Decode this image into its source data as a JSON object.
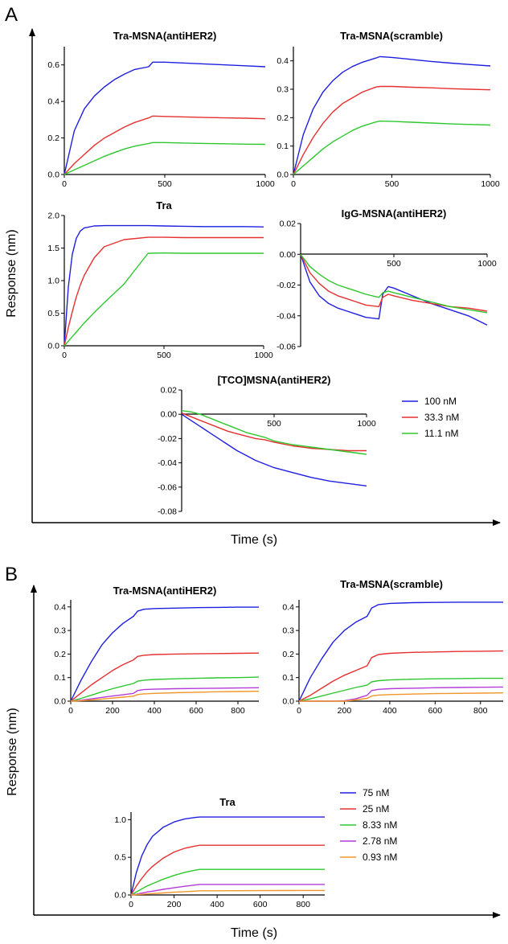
{
  "panels": [
    {
      "label": "A",
      "xlabel": "Time (s)",
      "ylabel": "Response (nm)",
      "legend": [
        {
          "label": "100 nM",
          "color": "#1f1fe0"
        },
        {
          "label": "33.3 nM",
          "color": "#e63030"
        },
        {
          "label": "11.1 nM",
          "color": "#2ec82e"
        }
      ]
    },
    {
      "label": "B",
      "xlabel": "Time (s)",
      "ylabel": "Response (nm)",
      "legend": [
        {
          "label": "75 nM",
          "color": "#1f1fe0"
        },
        {
          "label": "25 nM",
          "color": "#e63030"
        },
        {
          "label": "8.33 nM",
          "color": "#2ec82e"
        },
        {
          "label": "2.78 nM",
          "color": "#b53ad9"
        },
        {
          "label": "0.93 nM",
          "color": "#f2962a"
        }
      ]
    }
  ],
  "chart_data": [
    {
      "id": "A1",
      "panel": "A",
      "type": "line",
      "title": "Tra-MSNA(antiHER2)",
      "xlim": [
        0,
        1000
      ],
      "ylim": [
        0,
        0.7
      ],
      "xticks": [
        0,
        500,
        1000
      ],
      "xtick_labels": [
        "0",
        "500",
        "1000"
      ],
      "yticks": [
        0,
        0.2,
        0.4,
        0.6
      ],
      "ytick_labels": [
        "0.0",
        "0.2",
        "0.4",
        "0.6"
      ],
      "x": [
        0,
        50,
        100,
        150,
        200,
        250,
        300,
        350,
        420,
        440,
        500,
        600,
        700,
        800,
        900,
        1000
      ],
      "series": [
        {
          "name": "100 nM",
          "color": "#1f1fe0",
          "values": [
            0,
            0.24,
            0.36,
            0.43,
            0.48,
            0.52,
            0.55,
            0.575,
            0.59,
            0.615,
            0.615,
            0.61,
            0.605,
            0.6,
            0.595,
            0.59
          ]
        },
        {
          "name": "33.3 nM",
          "color": "#e63030",
          "values": [
            0,
            0.06,
            0.11,
            0.16,
            0.2,
            0.23,
            0.26,
            0.285,
            0.31,
            0.32,
            0.318,
            0.315,
            0.312,
            0.31,
            0.308,
            0.305
          ]
        },
        {
          "name": "11.1 nM",
          "color": "#2ec82e",
          "values": [
            0,
            0.025,
            0.05,
            0.075,
            0.1,
            0.12,
            0.14,
            0.155,
            0.17,
            0.175,
            0.175,
            0.172,
            0.17,
            0.168,
            0.166,
            0.165
          ]
        }
      ]
    },
    {
      "id": "A2",
      "panel": "A",
      "type": "line",
      "title": "Tra-MSNA(scramble)",
      "xlim": [
        0,
        1000
      ],
      "ylim": [
        0,
        0.45
      ],
      "xticks": [
        0,
        500,
        1000
      ],
      "xtick_labels": [
        "0",
        "500",
        "1000"
      ],
      "yticks": [
        0,
        0.1,
        0.2,
        0.3,
        0.4
      ],
      "ytick_labels": [
        "0.0",
        "0.1",
        "0.2",
        "0.3",
        "0.4"
      ],
      "x": [
        0,
        50,
        100,
        150,
        200,
        250,
        300,
        350,
        420,
        440,
        500,
        600,
        700,
        800,
        900,
        1000
      ],
      "series": [
        {
          "name": "100 nM",
          "color": "#1f1fe0",
          "values": [
            0,
            0.14,
            0.23,
            0.29,
            0.33,
            0.36,
            0.38,
            0.395,
            0.41,
            0.415,
            0.412,
            0.405,
            0.398,
            0.392,
            0.387,
            0.382
          ]
        },
        {
          "name": "33.3 nM",
          "color": "#e63030",
          "values": [
            0,
            0.07,
            0.13,
            0.18,
            0.22,
            0.25,
            0.27,
            0.29,
            0.308,
            0.31,
            0.31,
            0.307,
            0.305,
            0.302,
            0.3,
            0.298
          ]
        },
        {
          "name": "11.1 nM",
          "color": "#2ec82e",
          "values": [
            0,
            0.03,
            0.06,
            0.09,
            0.115,
            0.135,
            0.155,
            0.17,
            0.185,
            0.188,
            0.187,
            0.184,
            0.181,
            0.178,
            0.176,
            0.174
          ]
        }
      ]
    },
    {
      "id": "A3",
      "panel": "A",
      "type": "line",
      "title": "Tra",
      "xlim": [
        0,
        1000
      ],
      "ylim": [
        0,
        2.0
      ],
      "xticks": [
        0,
        500,
        1000
      ],
      "xtick_labels": [
        "0",
        "500",
        "1000"
      ],
      "yticks": [
        0,
        0.5,
        1.0,
        1.5,
        2.0
      ],
      "ytick_labels": [
        "0.0",
        "0.5",
        "1.0",
        "1.5",
        "2.0"
      ],
      "x": [
        0,
        20,
        40,
        60,
        80,
        100,
        150,
        200,
        300,
        420,
        500,
        600,
        700,
        800,
        900,
        1000
      ],
      "series": [
        {
          "name": "100 nM",
          "color": "#1f1fe0",
          "values": [
            0,
            0.9,
            1.4,
            1.65,
            1.76,
            1.81,
            1.84,
            1.845,
            1.845,
            1.845,
            1.84,
            1.835,
            1.83,
            1.83,
            1.83,
            1.825
          ]
        },
        {
          "name": "33.3 nM",
          "color": "#e63030",
          "values": [
            0,
            0.28,
            0.52,
            0.75,
            0.93,
            1.08,
            1.35,
            1.52,
            1.63,
            1.665,
            1.665,
            1.66,
            1.66,
            1.66,
            1.66,
            1.66
          ]
        },
        {
          "name": "11.1 nM",
          "color": "#2ec82e",
          "values": [
            0,
            0.07,
            0.14,
            0.21,
            0.28,
            0.35,
            0.51,
            0.66,
            0.95,
            1.42,
            1.425,
            1.42,
            1.42,
            1.42,
            1.42,
            1.42
          ]
        }
      ]
    },
    {
      "id": "A4",
      "panel": "A",
      "type": "line",
      "title": "IgG-MSNA(antiHER2)",
      "xlim": [
        0,
        1000
      ],
      "ylim": [
        -0.06,
        0.02
      ],
      "xticks": [
        500,
        1000
      ],
      "xtick_labels": [
        "500",
        "1000"
      ],
      "yticks": [
        -0.06,
        -0.04,
        -0.02,
        0,
        0.02
      ],
      "ytick_labels": [
        "-0.06",
        "-0.04",
        "-0.02",
        "0.00",
        "0.02"
      ],
      "x": [
        0,
        50,
        100,
        150,
        200,
        250,
        300,
        350,
        420,
        440,
        470,
        500,
        600,
        700,
        800,
        900,
        1000
      ],
      "series": [
        {
          "name": "100 nM",
          "color": "#1f1fe0",
          "values": [
            0,
            -0.018,
            -0.027,
            -0.032,
            -0.035,
            -0.037,
            -0.039,
            -0.041,
            -0.042,
            -0.026,
            -0.021,
            -0.022,
            -0.027,
            -0.032,
            -0.036,
            -0.04,
            -0.046
          ]
        },
        {
          "name": "33.3 nM",
          "color": "#e63030",
          "values": [
            0,
            -0.012,
            -0.019,
            -0.024,
            -0.027,
            -0.029,
            -0.031,
            -0.033,
            -0.034,
            -0.028,
            -0.026,
            -0.027,
            -0.03,
            -0.032,
            -0.034,
            -0.035,
            -0.037
          ]
        },
        {
          "name": "11.1 nM",
          "color": "#2ec82e",
          "values": [
            0,
            -0.008,
            -0.013,
            -0.017,
            -0.02,
            -0.022,
            -0.024,
            -0.026,
            -0.028,
            -0.025,
            -0.024,
            -0.025,
            -0.028,
            -0.031,
            -0.034,
            -0.036,
            -0.038
          ]
        }
      ]
    },
    {
      "id": "A5",
      "panel": "A",
      "type": "line",
      "title": "[TCO]MSNA(antiHER2)",
      "xlim": [
        0,
        1000
      ],
      "ylim": [
        -0.08,
        0.02
      ],
      "xticks": [
        500,
        1000
      ],
      "xtick_labels": [
        "500",
        "1000"
      ],
      "yticks": [
        -0.08,
        -0.06,
        -0.04,
        -0.02,
        0,
        0.02
      ],
      "ytick_labels": [
        "-0.08",
        "-0.06",
        "-0.04",
        "-0.02",
        "0.00",
        "0.02"
      ],
      "x": [
        0,
        50,
        100,
        150,
        200,
        250,
        300,
        350,
        400,
        450,
        500,
        600,
        700,
        800,
        900,
        1000
      ],
      "series": [
        {
          "name": "100 nM",
          "color": "#1f1fe0",
          "values": [
            0,
            -0.005,
            -0.01,
            -0.015,
            -0.02,
            -0.025,
            -0.03,
            -0.034,
            -0.038,
            -0.041,
            -0.044,
            -0.048,
            -0.052,
            -0.055,
            -0.057,
            -0.059
          ]
        },
        {
          "name": "33.3 nM",
          "color": "#e63030",
          "values": [
            0.001,
            -0.002,
            -0.005,
            -0.008,
            -0.011,
            -0.014,
            -0.016,
            -0.018,
            -0.02,
            -0.021,
            -0.023,
            -0.026,
            -0.028,
            -0.029,
            -0.03,
            -0.03
          ]
        },
        {
          "name": "11.1 nM",
          "color": "#2ec82e",
          "values": [
            0.003,
            0.002,
            0,
            -0.003,
            -0.006,
            -0.009,
            -0.012,
            -0.015,
            -0.017,
            -0.019,
            -0.022,
            -0.025,
            -0.027,
            -0.029,
            -0.031,
            -0.033
          ]
        }
      ]
    },
    {
      "id": "B1",
      "panel": "B",
      "type": "line",
      "title": "Tra-MSNA(antiHER2)",
      "xlim": [
        0,
        900
      ],
      "ylim": [
        0,
        0.43
      ],
      "xticks": [
        0,
        200,
        400,
        600,
        800
      ],
      "xtick_labels": [
        "0",
        "200",
        "400",
        "600",
        "800"
      ],
      "yticks": [
        0,
        0.1,
        0.2,
        0.3,
        0.4
      ],
      "ytick_labels": [
        "0.0",
        "0.1",
        "0.2",
        "0.3",
        "0.4"
      ],
      "x": [
        0,
        50,
        100,
        150,
        200,
        250,
        300,
        320,
        350,
        400,
        500,
        600,
        700,
        800,
        900
      ],
      "series": [
        {
          "name": "75 nM",
          "color": "#1f1fe0",
          "values": [
            0,
            0.09,
            0.17,
            0.24,
            0.29,
            0.33,
            0.36,
            0.382,
            0.39,
            0.393,
            0.395,
            0.397,
            0.398,
            0.399,
            0.399
          ]
        },
        {
          "name": "25 nM",
          "color": "#e63030",
          "values": [
            0,
            0.035,
            0.07,
            0.1,
            0.13,
            0.155,
            0.175,
            0.19,
            0.195,
            0.198,
            0.2,
            0.201,
            0.202,
            0.203,
            0.204
          ]
        },
        {
          "name": "8.33 nM",
          "color": "#2ec82e",
          "values": [
            0,
            0.012,
            0.026,
            0.04,
            0.053,
            0.064,
            0.075,
            0.085,
            0.089,
            0.092,
            0.095,
            0.097,
            0.099,
            0.1,
            0.102
          ]
        },
        {
          "name": "2.78 nM",
          "color": "#b53ad9",
          "values": [
            0,
            0.004,
            0.01,
            0.016,
            0.022,
            0.027,
            0.033,
            0.045,
            0.049,
            0.051,
            0.053,
            0.054,
            0.055,
            0.056,
            0.057
          ]
        },
        {
          "name": "0.93 nM",
          "color": "#f2962a",
          "values": [
            0,
            0.002,
            0.005,
            0.009,
            0.013,
            0.017,
            0.021,
            0.028,
            0.031,
            0.033,
            0.036,
            0.038,
            0.04,
            0.041,
            0.042
          ]
        }
      ]
    },
    {
      "id": "B2",
      "panel": "B",
      "type": "line",
      "title": "Tra-MSNA(scramble)",
      "xlim": [
        0,
        900
      ],
      "ylim": [
        0,
        0.43
      ],
      "xticks": [
        0,
        200,
        400,
        600,
        800
      ],
      "xtick_labels": [
        "0",
        "200",
        "400",
        "600",
        "800"
      ],
      "yticks": [
        0,
        0.1,
        0.2,
        0.3,
        0.4
      ],
      "ytick_labels": [
        "0.0",
        "0.1",
        "0.2",
        "0.3",
        "0.4"
      ],
      "x": [
        0,
        50,
        100,
        150,
        200,
        250,
        300,
        320,
        350,
        400,
        500,
        600,
        700,
        800,
        900
      ],
      "series": [
        {
          "name": "75 nM",
          "color": "#1f1fe0",
          "values": [
            0,
            0.1,
            0.18,
            0.25,
            0.3,
            0.335,
            0.36,
            0.395,
            0.41,
            0.415,
            0.418,
            0.419,
            0.42,
            0.42,
            0.42
          ]
        },
        {
          "name": "25 nM",
          "color": "#e63030",
          "values": [
            0,
            0.025,
            0.055,
            0.085,
            0.11,
            0.13,
            0.15,
            0.185,
            0.198,
            0.203,
            0.207,
            0.209,
            0.211,
            0.212,
            0.213
          ]
        },
        {
          "name": "8.33 nM",
          "color": "#2ec82e",
          "values": [
            0,
            0.01,
            0.022,
            0.034,
            0.046,
            0.058,
            0.068,
            0.082,
            0.087,
            0.09,
            0.093,
            0.095,
            0.096,
            0.097,
            0.097
          ]
        },
        {
          "name": "2.78 nM",
          "color": "#b53ad9",
          "values": [
            0,
            0,
            0,
            0,
            0.002,
            0.01,
            0.025,
            0.045,
            0.05,
            0.053,
            0.055,
            0.057,
            0.058,
            0.059,
            0.06
          ]
        },
        {
          "name": "0.93 nM",
          "color": "#f2962a",
          "values": [
            0,
            0,
            0,
            0,
            0,
            0.005,
            0.012,
            0.022,
            0.026,
            0.028,
            0.03,
            0.032,
            0.033,
            0.034,
            0.035
          ]
        }
      ]
    },
    {
      "id": "B3",
      "panel": "B",
      "type": "line",
      "title": "Tra",
      "xlim": [
        0,
        900
      ],
      "ylim": [
        0,
        1.1
      ],
      "xticks": [
        0,
        200,
        400,
        600,
        800
      ],
      "xtick_labels": [
        "0",
        "200",
        "400",
        "600",
        "800"
      ],
      "yticks": [
        0,
        0.5,
        1.0
      ],
      "ytick_labels": [
        "0.0",
        "0.5",
        "1.0"
      ],
      "x": [
        0,
        25,
        50,
        75,
        100,
        150,
        200,
        250,
        300,
        320,
        400,
        500,
        600,
        700,
        800,
        900
      ],
      "series": [
        {
          "name": "75 nM",
          "color": "#1f1fe0",
          "values": [
            0,
            0.3,
            0.52,
            0.67,
            0.78,
            0.9,
            0.97,
            1.01,
            1.03,
            1.035,
            1.035,
            1.035,
            1.035,
            1.035,
            1.035,
            1.035
          ]
        },
        {
          "name": "25 nM",
          "color": "#e63030",
          "values": [
            0,
            0.12,
            0.22,
            0.31,
            0.38,
            0.49,
            0.57,
            0.62,
            0.65,
            0.66,
            0.66,
            0.66,
            0.66,
            0.66,
            0.66,
            0.66
          ]
        },
        {
          "name": "8.33 nM",
          "color": "#2ec82e",
          "values": [
            0,
            0.04,
            0.08,
            0.12,
            0.15,
            0.21,
            0.26,
            0.3,
            0.33,
            0.34,
            0.34,
            0.34,
            0.34,
            0.34,
            0.34,
            0.34
          ]
        },
        {
          "name": "2.78 nM",
          "color": "#b53ad9",
          "values": [
            0,
            0.01,
            0.025,
            0.04,
            0.05,
            0.075,
            0.095,
            0.115,
            0.132,
            0.14,
            0.14,
            0.14,
            0.14,
            0.14,
            0.14,
            0.14
          ]
        },
        {
          "name": "0.93 nM",
          "color": "#f2962a",
          "values": [
            0,
            0.004,
            0.009,
            0.014,
            0.018,
            0.027,
            0.036,
            0.044,
            0.051,
            0.055,
            0.056,
            0.057,
            0.058,
            0.059,
            0.06,
            0.06
          ]
        }
      ]
    }
  ]
}
